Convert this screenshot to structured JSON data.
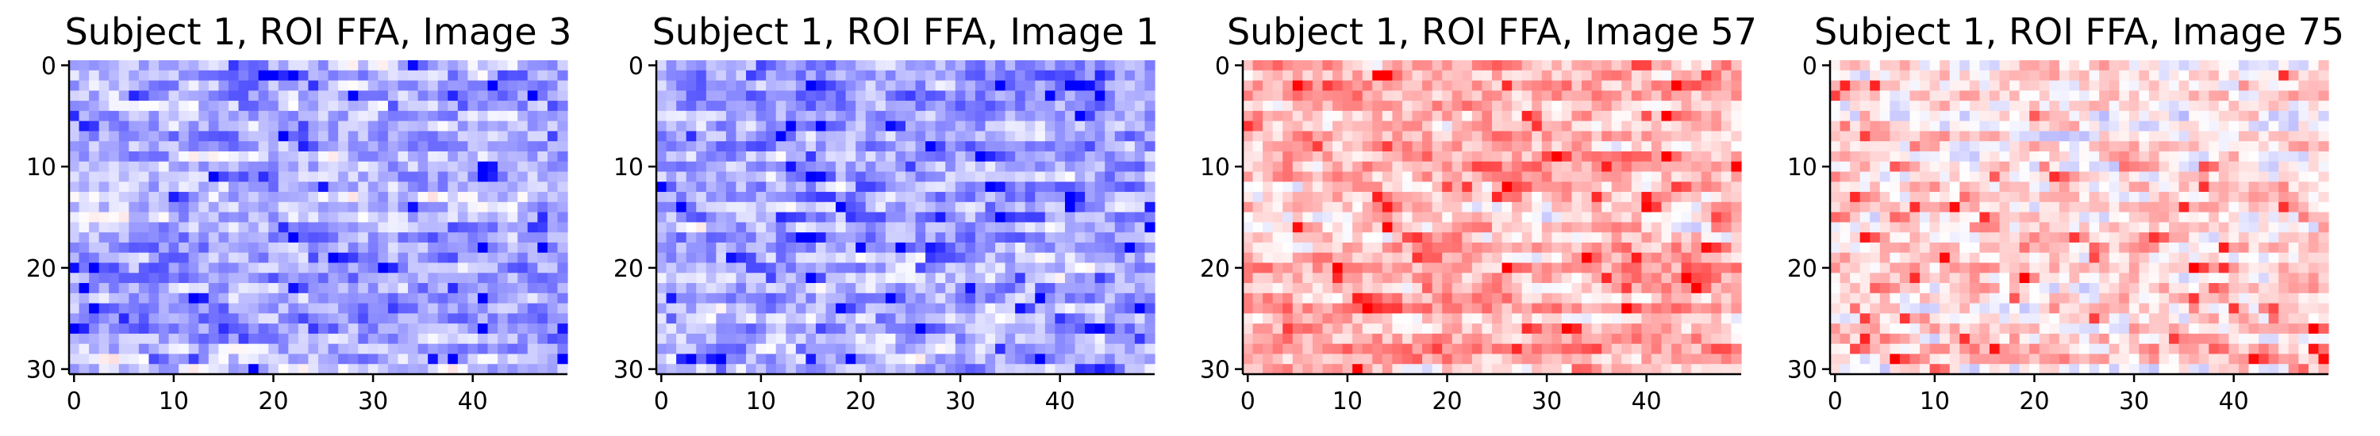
{
  "figure": {
    "background": "#ffffff"
  },
  "chart_data": [
    {
      "type": "heatmap",
      "title": "Subject 1, ROI FFA, Image 3",
      "xlabel": "",
      "ylabel": "",
      "rows": 31,
      "cols": 50,
      "xlim": [
        -0.5,
        49.5
      ],
      "ylim": [
        30.5,
        -0.5
      ],
      "x_ticks": [
        0,
        10,
        20,
        30,
        40
      ],
      "y_ticks": [
        0,
        10,
        20,
        30
      ],
      "colormap": "bwr",
      "value_range": [
        -1,
        1
      ],
      "mean_level": -0.32,
      "row_profile": [
        -0.25,
        -0.3,
        -0.28,
        -0.35,
        -0.3,
        -0.25,
        -0.3,
        -0.35,
        -0.3,
        -0.25,
        -0.3,
        -0.35,
        -0.3,
        -0.2,
        -0.25,
        -0.3,
        -0.35,
        -0.4,
        -0.35,
        -0.4,
        -0.35,
        -0.4,
        -0.35,
        -0.3,
        -0.35,
        -0.4,
        -0.35,
        -0.4,
        -0.3,
        -0.25,
        -0.2
      ],
      "seed": 3,
      "grid": false,
      "colorbar": false
    },
    {
      "type": "heatmap",
      "title": "Subject 1, ROI FFA, Image 1",
      "xlabel": "",
      "ylabel": "",
      "rows": 31,
      "cols": 50,
      "xlim": [
        -0.5,
        49.5
      ],
      "ylim": [
        30.5,
        -0.5
      ],
      "x_ticks": [
        0,
        10,
        20,
        30,
        40
      ],
      "y_ticks": [
        0,
        10,
        20,
        30
      ],
      "colormap": "bwr",
      "value_range": [
        -1,
        1
      ],
      "mean_level": -0.34,
      "row_profile": [
        -0.35,
        -0.4,
        -0.35,
        -0.45,
        -0.4,
        -0.35,
        -0.3,
        -0.35,
        -0.4,
        -0.3,
        -0.35,
        -0.3,
        -0.35,
        -0.4,
        -0.3,
        -0.35,
        -0.3,
        -0.4,
        -0.3,
        -0.25,
        -0.3,
        -0.25,
        -0.3,
        -0.35,
        -0.25,
        -0.3,
        -0.35,
        -0.3,
        -0.25,
        -0.3,
        -0.3
      ],
      "seed": 11,
      "grid": false,
      "colorbar": false
    },
    {
      "type": "heatmap",
      "title": "Subject 1, ROI FFA, Image 57",
      "xlabel": "",
      "ylabel": "",
      "rows": 31,
      "cols": 50,
      "xlim": [
        -0.5,
        49.5
      ],
      "ylim": [
        30.5,
        -0.5
      ],
      "x_ticks": [
        0,
        10,
        20,
        30,
        40
      ],
      "y_ticks": [
        0,
        10,
        20,
        30
      ],
      "colormap": "bwr",
      "value_range": [
        -1,
        1
      ],
      "mean_level": 0.22,
      "row_profile": [
        0.3,
        0.25,
        0.3,
        0.35,
        0.3,
        0.25,
        0.2,
        0.3,
        0.25,
        0.35,
        0.3,
        0.25,
        0.2,
        0.15,
        0.2,
        0.1,
        0.15,
        0.2,
        0.3,
        0.25,
        0.35,
        0.3,
        0.25,
        0.3,
        0.4,
        0.2,
        0.25,
        0.3,
        0.45,
        0.35,
        0.2
      ],
      "seed": 57,
      "grid": false,
      "colorbar": false
    },
    {
      "type": "heatmap",
      "title": "Subject 1, ROI FFA, Image 75",
      "xlabel": "",
      "ylabel": "",
      "rows": 31,
      "cols": 50,
      "xlim": [
        -0.5,
        49.5
      ],
      "ylim": [
        30.5,
        -0.5
      ],
      "x_ticks": [
        0,
        10,
        20,
        30,
        40
      ],
      "y_ticks": [
        0,
        10,
        20,
        30
      ],
      "colormap": "bwr",
      "value_range": [
        -1,
        1
      ],
      "mean_level": 0.08,
      "row_profile": [
        0.1,
        0.05,
        0.1,
        0.15,
        0.05,
        0.0,
        0.05,
        0.1,
        0.15,
        0.1,
        0.05,
        0.1,
        0.15,
        0.2,
        0.1,
        0.05,
        0.1,
        0.2,
        0.15,
        0.1,
        0.2,
        0.15,
        0.1,
        0.15,
        0.05,
        0.1,
        0.2,
        0.1,
        0.25,
        0.15,
        0.05
      ],
      "seed": 75,
      "grid": false,
      "colorbar": false
    }
  ]
}
